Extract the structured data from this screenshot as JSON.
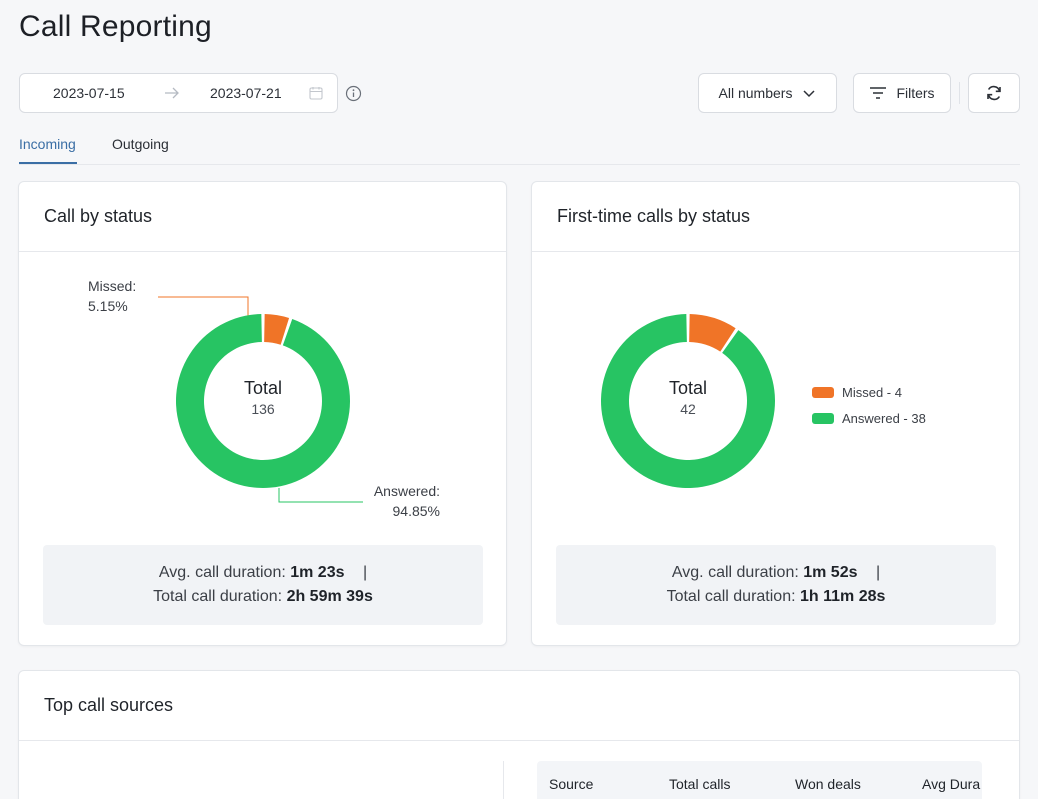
{
  "page": {
    "title": "Call Reporting"
  },
  "date_range": {
    "start": "2023-07-15",
    "end": "2023-07-21"
  },
  "controls": {
    "numbers_label": "All numbers",
    "filters_label": "Filters"
  },
  "tabs": [
    {
      "label": "Incoming",
      "active": true
    },
    {
      "label": "Outgoing",
      "active": false
    }
  ],
  "colors": {
    "missed": "#f07427",
    "answered": "#27c463",
    "accent": "#3a6ea5"
  },
  "call_by_status": {
    "title": "Call by status",
    "center_label": "Total",
    "total": "136",
    "missed_callout_label": "Missed:",
    "missed_callout_value": "5.15%",
    "answered_callout_label": "Answered:",
    "answered_callout_value": "94.85%",
    "avg_label": "Avg. call duration:",
    "avg_value": "1m 23s",
    "separator": "|",
    "total_label": "Total call duration:",
    "total_value": "2h 59m 39s"
  },
  "first_time_calls": {
    "title": "First-time calls by status",
    "center_label": "Total",
    "total": "42",
    "legend_missed": "Missed - 4",
    "legend_answered": "Answered - 38",
    "avg_label": "Avg. call duration:",
    "avg_value": "1m 52s",
    "separator": "|",
    "total_label": "Total call duration:",
    "total_value": "1h 11m 28s"
  },
  "top_sources": {
    "title": "Top call sources",
    "columns": [
      "Source",
      "Total calls",
      "Won deals",
      "Avg Dura"
    ]
  },
  "chart_data": [
    {
      "type": "pie",
      "title": "Call by status",
      "categories": [
        "Missed",
        "Answered"
      ],
      "values": [
        5.15,
        94.85
      ],
      "unit": "%",
      "total": 136
    },
    {
      "type": "pie",
      "title": "First-time calls by status",
      "categories": [
        "Missed",
        "Answered"
      ],
      "values": [
        4,
        38
      ],
      "total": 42
    }
  ]
}
